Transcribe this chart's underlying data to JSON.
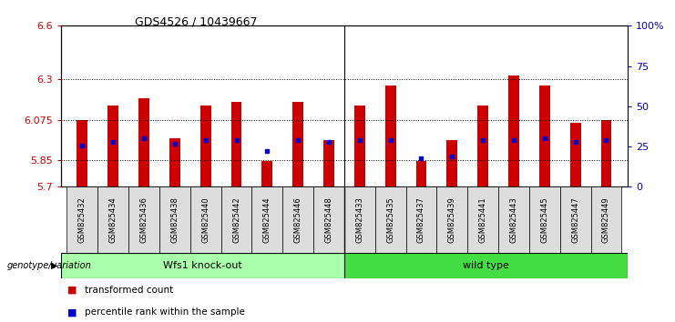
{
  "title": "GDS4526 / 10439667",
  "samples": [
    "GSM825432",
    "GSM825434",
    "GSM825436",
    "GSM825438",
    "GSM825440",
    "GSM825442",
    "GSM825444",
    "GSM825446",
    "GSM825448",
    "GSM825433",
    "GSM825435",
    "GSM825437",
    "GSM825439",
    "GSM825441",
    "GSM825443",
    "GSM825445",
    "GSM825447",
    "GSM825449"
  ],
  "bar_tops": [
    6.075,
    6.155,
    6.195,
    5.97,
    6.155,
    6.175,
    5.845,
    6.175,
    5.96,
    6.155,
    6.265,
    5.845,
    5.96,
    6.155,
    6.32,
    6.265,
    6.06,
    6.075
  ],
  "blue_dot_y": [
    5.93,
    5.95,
    5.97,
    5.94,
    5.96,
    5.96,
    5.9,
    5.96,
    5.95,
    5.96,
    5.96,
    5.86,
    5.87,
    5.96,
    5.96,
    5.97,
    5.95,
    5.96
  ],
  "y_min": 5.7,
  "y_max": 6.6,
  "y_ticks": [
    5.7,
    5.85,
    6.075,
    6.3,
    6.6
  ],
  "y_tick_labels": [
    "5.7",
    "5.85",
    "6.075",
    "6.3",
    "6.6"
  ],
  "right_y_ticks": [
    0.0,
    0.25,
    0.5,
    0.75,
    1.0
  ],
  "right_y_labels": [
    "0",
    "25",
    "50",
    "75",
    "100%"
  ],
  "bar_color": "#CC0000",
  "dot_color": "#0000CC",
  "bar_baseline": 5.7,
  "group1_label": "Wfs1 knock-out",
  "group2_label": "wild type",
  "group1_color": "#AAFFAA",
  "group2_color": "#44DD44",
  "genotype_label": "genotype/variation",
  "legend1": "transformed count",
  "legend2": "percentile rank within the sample",
  "xlabel_color": "#CC0000",
  "right_y_color": "#0000CC",
  "n_group1": 9,
  "n_group2": 9
}
